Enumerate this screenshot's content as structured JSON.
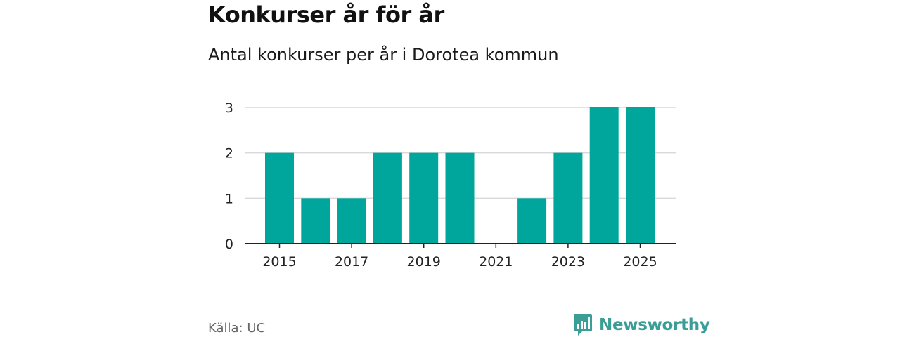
{
  "header": {
    "title": "Konkurser år för år",
    "subtitle": "Antal konkurser per år i Dorotea kommun"
  },
  "footer": {
    "source": "Källa: UC",
    "brand": "Newsworthy"
  },
  "colors": {
    "bar": "#00a69c",
    "grid": "#d9d9d9",
    "axis": "#222222",
    "brand": "#3a9e96"
  },
  "chart_data": {
    "type": "bar",
    "title": "Konkurser år för år",
    "subtitle": "Antal konkurser per år i Dorotea kommun",
    "xlabel": "",
    "ylabel": "",
    "categories": [
      "2015",
      "2016",
      "2017",
      "2018",
      "2019",
      "2020",
      "2021",
      "2022",
      "2023",
      "2024",
      "2025"
    ],
    "values": [
      2,
      1,
      1,
      2,
      2,
      2,
      0,
      1,
      2,
      3,
      3
    ],
    "x_ticks": [
      "2015",
      "2017",
      "2019",
      "2021",
      "2023",
      "2025"
    ],
    "y_ticks": [
      "0",
      "1",
      "2",
      "3"
    ],
    "ylim": [
      0,
      3
    ],
    "grid": true,
    "legend": "none"
  }
}
